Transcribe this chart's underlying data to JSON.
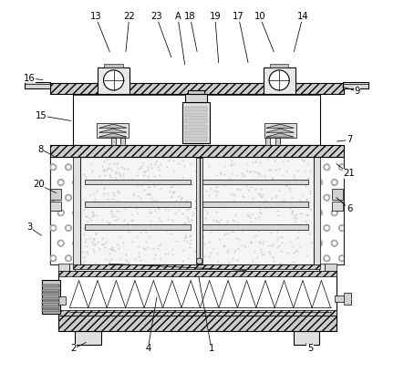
{
  "bg_color": "#ffffff",
  "line_color": "#000000",
  "fig_width": 4.43,
  "fig_height": 4.09,
  "dpi": 100,
  "annotations": {
    "13": [
      0.215,
      0.955,
      0.255,
      0.855
    ],
    "22": [
      0.305,
      0.955,
      0.295,
      0.855
    ],
    "23": [
      0.378,
      0.955,
      0.42,
      0.84
    ],
    "A": [
      0.435,
      0.955,
      0.455,
      0.82
    ],
    "18": [
      0.468,
      0.955,
      0.488,
      0.855
    ],
    "19": [
      0.535,
      0.955,
      0.545,
      0.825
    ],
    "17": [
      0.598,
      0.955,
      0.625,
      0.825
    ],
    "10": [
      0.655,
      0.955,
      0.695,
      0.855
    ],
    "14": [
      0.77,
      0.955,
      0.745,
      0.855
    ],
    "16": [
      0.038,
      0.79,
      0.08,
      0.785
    ],
    "15": [
      0.068,
      0.69,
      0.155,
      0.675
    ],
    "8": [
      0.068,
      0.6,
      0.115,
      0.575
    ],
    "20": [
      0.062,
      0.505,
      0.115,
      0.48
    ],
    "3": [
      0.038,
      0.39,
      0.075,
      0.365
    ],
    "2": [
      0.155,
      0.065,
      0.195,
      0.085
    ],
    "4": [
      0.355,
      0.065,
      0.38,
      0.21
    ],
    "1": [
      0.525,
      0.065,
      0.49,
      0.265
    ],
    "5": [
      0.79,
      0.065,
      0.775,
      0.085
    ],
    "6": [
      0.895,
      0.44,
      0.855,
      0.475
    ],
    "21": [
      0.895,
      0.535,
      0.855,
      0.565
    ],
    "7": [
      0.895,
      0.625,
      0.855,
      0.62
    ],
    "9": [
      0.915,
      0.755,
      0.87,
      0.77
    ]
  }
}
